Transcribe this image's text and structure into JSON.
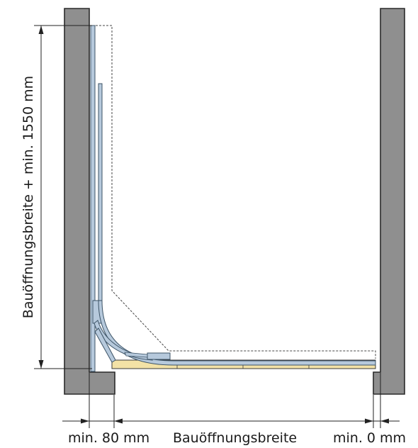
{
  "labels": {
    "vertical_dimension": "Bauöffnungsbreite + min. 1550 mm",
    "left_clearance": "min. 80 mm",
    "opening_width": "Bauöffnungsbreite",
    "right_clearance": "min. 0 mm"
  },
  "colors": {
    "wall_fill": "#8f8f8f",
    "wall_stroke": "#2a2a2a",
    "rail_fill": "#b6c9dc",
    "rail_stroke": "#3c5366",
    "sill_fill": "#f3e2a6",
    "dimension_line": "#222222",
    "dashed_outline": "#444444"
  }
}
